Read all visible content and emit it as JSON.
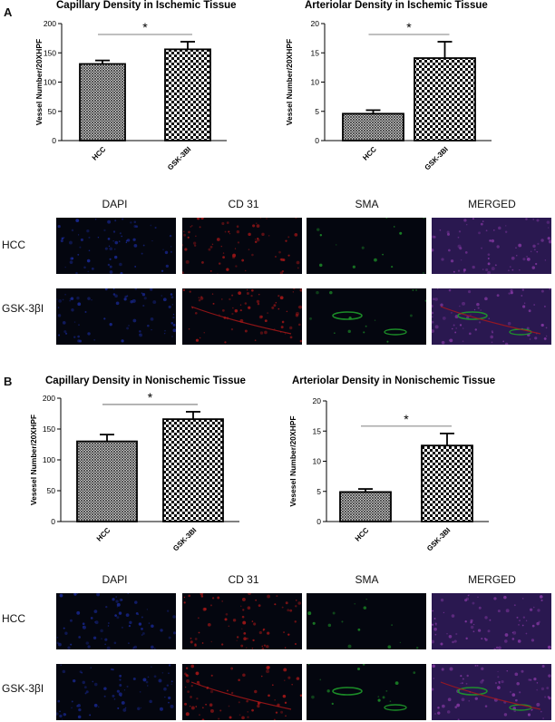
{
  "panels": [
    {
      "letter": "A",
      "charts": [
        {
          "type": "bar",
          "title": "Capillary Density in  Ischemic  Tissue",
          "ylabel": "Vessel  Number/20XHPF",
          "categories": [
            "HCC",
            "GSK-3BI"
          ],
          "values": [
            131,
            156
          ],
          "errors": [
            6,
            13
          ],
          "ylim": [
            0,
            200
          ],
          "yticks": [
            0,
            50,
            100,
            150,
            200
          ],
          "significance": "*",
          "pattern": [
            "crosshatch",
            "checker"
          ]
        },
        {
          "type": "bar",
          "title": "Arteriolar Density in Ischemic Tissue",
          "ylabel": "Vessel  Number/20XHPF",
          "categories": [
            "HCC",
            "GSK-3BI"
          ],
          "values": [
            4.6,
            14.1
          ],
          "errors": [
            0.6,
            2.8
          ],
          "ylim": [
            0,
            20
          ],
          "yticks": [
            0,
            5,
            10,
            15,
            20
          ],
          "significance": "*",
          "pattern": [
            "crosshatch",
            "checker"
          ]
        }
      ],
      "columns": [
        "DAPI",
        "CD 31",
        "SMA",
        "MERGED"
      ],
      "rows": [
        "HCC",
        "GSK-3βI"
      ]
    },
    {
      "letter": "B",
      "charts": [
        {
          "type": "bar",
          "title": "Capillary  Density in Nonischemic Tissue",
          "ylabel": "Vesesel Number/20XHPF",
          "categories": [
            "HCC",
            "GSK-3BI"
          ],
          "values": [
            130,
            166
          ],
          "errors": [
            11,
            12
          ],
          "ylim": [
            0,
            200
          ],
          "yticks": [
            0,
            50,
            100,
            150,
            200
          ],
          "significance": "*",
          "pattern": [
            "crosshatch",
            "checker"
          ]
        },
        {
          "type": "bar",
          "title": "Arteriolar Density in  Nonischemic Tissue",
          "ylabel": "Vesesel Number/20XHPF",
          "categories": [
            "HCC",
            "GSK-3BI"
          ],
          "values": [
            4.9,
            12.6
          ],
          "errors": [
            0.5,
            2.0
          ],
          "ylim": [
            0,
            20
          ],
          "yticks": [
            0,
            5,
            10,
            15,
            20
          ],
          "significance": "*",
          "pattern": [
            "crosshatch",
            "checker"
          ]
        }
      ],
      "columns": [
        "DAPI",
        "CD 31",
        "SMA",
        "MERGED"
      ],
      "rows": [
        "HCC",
        "GSK-3βI"
      ]
    }
  ],
  "colors": {
    "dapi": "#1a2a9a",
    "cd31": "#b01818",
    "sma": "#1e9a2a",
    "merged_bg": "#2a1850",
    "micrograph_bg": "#04060f"
  }
}
